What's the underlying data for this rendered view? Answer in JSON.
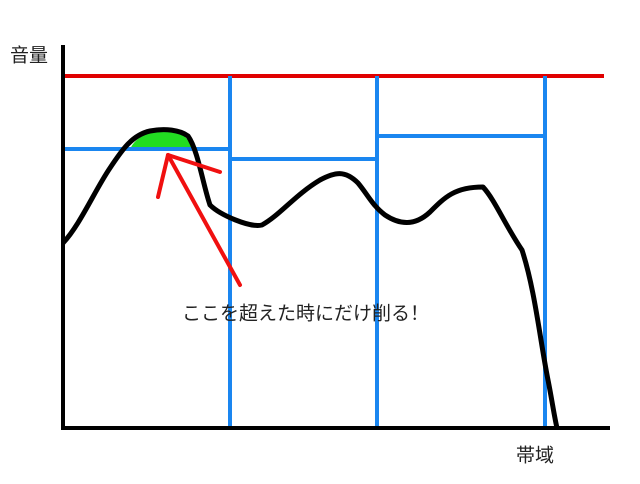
{
  "axes": {
    "y_label": "音量",
    "x_label": "帯域"
  },
  "annotation": "ここを超えた時にだけ削る！"
}
